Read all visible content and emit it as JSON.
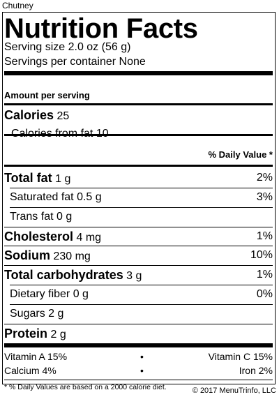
{
  "product_name": "Chutney",
  "label": {
    "title": "Nutrition Facts",
    "serving_size": "Serving size 2.0 oz (56 g)",
    "servings_per_container": "Servings per container None",
    "amount_per_serving": "Amount per serving",
    "calories": {
      "label": "Calories",
      "value": "25"
    },
    "calories_from_fat": {
      "label": "Calories from fat",
      "value": "10"
    },
    "daily_value_header": "% Daily Value *",
    "nutrients": [
      {
        "label": "Total fat",
        "amount": "1 g",
        "dv": "2%"
      },
      {
        "label": "Saturated fat",
        "amount": "0.5 g",
        "dv": "3%"
      },
      {
        "label": "Trans fat",
        "amount": "0 g",
        "dv": ""
      },
      {
        "label": "Cholesterol",
        "amount": "4 mg",
        "dv": "1%"
      },
      {
        "label": "Sodium",
        "amount": "230 mg",
        "dv": "10%"
      },
      {
        "label": "Total carbohydrates",
        "amount": "3 g",
        "dv": "1%"
      },
      {
        "label": "Dietary fiber",
        "amount": "0 g",
        "dv": "0%"
      },
      {
        "label": "Sugars",
        "amount": "2 g",
        "dv": ""
      },
      {
        "label": "Protein",
        "amount": "2 g",
        "dv": ""
      }
    ],
    "vitamins": [
      {
        "left": "Vitamin A 15%",
        "right": "Vitamin C 15%"
      },
      {
        "left": "Calcium 4%",
        "right": "Iron 2%"
      }
    ],
    "separator": "•",
    "footnote": "* % Daily Values are based on a 2000 calorie diet."
  },
  "copyright": "© 2017 MenuTrinfo, LLC"
}
